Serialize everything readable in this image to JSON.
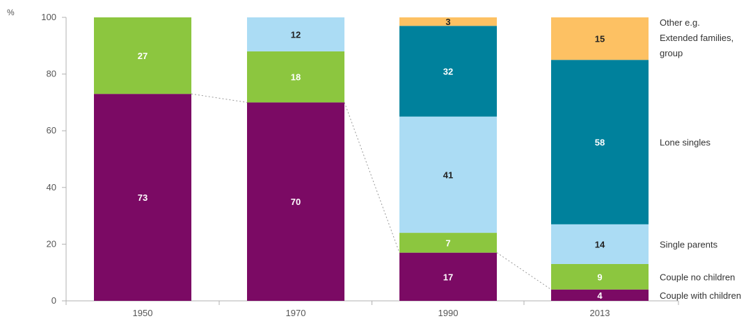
{
  "chart_data": {
    "type": "bar",
    "stacked": true,
    "unit_label": "%",
    "categories": [
      "1950",
      "1970",
      "1990",
      "2013"
    ],
    "ylim": [
      0,
      100
    ],
    "yticks": [
      "0",
      "20",
      "40",
      "60",
      "80",
      "100"
    ],
    "series": [
      {
        "name": "Couple with children",
        "values": [
          73,
          70,
          17,
          4
        ],
        "color": "#7b0a64",
        "label_color": "#ffffff"
      },
      {
        "name": "Couple no children",
        "values": [
          27,
          18,
          7,
          9
        ],
        "color": "#8cc63f",
        "label_color": "#ffffff"
      },
      {
        "name": "Single parents",
        "values": [
          0,
          12,
          41,
          14
        ],
        "color": "#abdcf4",
        "label_color": "#222222"
      },
      {
        "name": "Lone singles",
        "values": [
          0,
          0,
          32,
          58
        ],
        "color": "#00819c",
        "label_color": "#ffffff"
      },
      {
        "name": "Other e.g. Extended families, group",
        "values": [
          0,
          0,
          3,
          15
        ],
        "color": "#fdc163",
        "label_color": "#222222"
      }
    ],
    "legend_lines": {
      "Couple with children": [
        "Couple with children"
      ],
      "Couple no children": [
        "Couple no children"
      ],
      "Single parents": [
        "Single parents"
      ],
      "Lone singles": [
        "Lone singles"
      ],
      "Other e.g. Extended families, group": [
        "Other e.g.",
        "Extended families,",
        "group"
      ]
    },
    "legend_placement": "right",
    "grid": false,
    "connector": "dotted line linking the top of the Couple with children segment across bars"
  }
}
